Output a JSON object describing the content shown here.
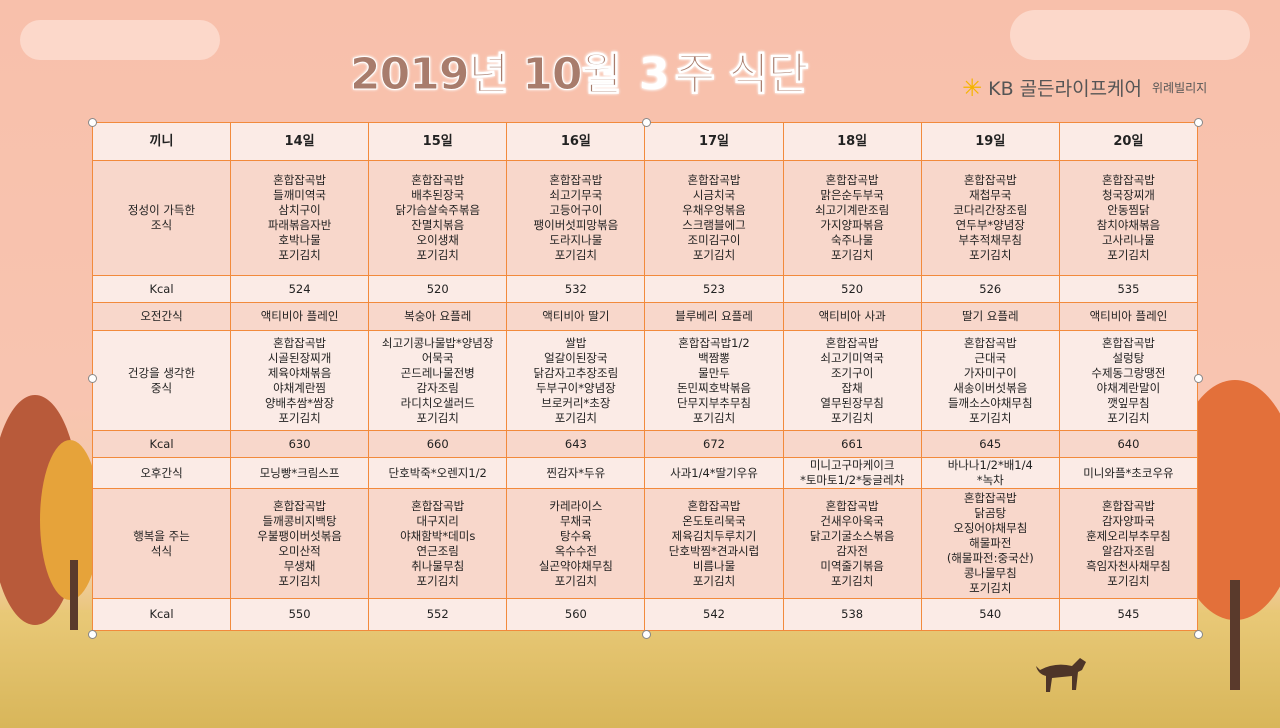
{
  "title": {
    "main": "2019년 10월",
    "week": "3",
    "suffix": "주 식단"
  },
  "logo": {
    "brand": "KB 골든라이프케어",
    "sub": "위례빌리지",
    "accent": "#f5b400"
  },
  "colors": {
    "border": "#f28a3c",
    "light_row": "#fbebe6",
    "dark_row": "#f8d7cb"
  },
  "table": {
    "header": [
      "끼니",
      "14일",
      "15일",
      "16일",
      "17일",
      "18일",
      "19일",
      "20일"
    ],
    "rows": [
      {
        "label": "정성이 가득한\n조식",
        "style": "dark",
        "height": 115,
        "cells": [
          "혼합잡곡밥\n들깨미역국\n삼치구이\n파래볶음자반\n호박나물\n포기김치",
          "혼합잡곡밥\n배추된장국\n닭가슴살숙주볶음\n잔멸치볶음\n오이생채\n포기김치",
          "혼합잡곡밥\n쇠고기무국\n고등어구이\n팽이버섯피망볶음\n도라지나물\n포기김치",
          "혼합잡곡밥\n시금치국\n우채우엉볶음\n스크램블에그\n조미김구이\n포기김치",
          "혼합잡곡밥\n맑은순두부국\n쇠고기계란조림\n가지양파볶음\n숙주나물\n포기김치",
          "혼합잡곡밥\n재첩무국\n코다리간장조림\n연두부*양념장\n부추적채무침\n포기김치",
          "혼합잡곡밥\n청국장찌개\n안동찜닭\n참치야채볶음\n고사리나물\n포기김치"
        ]
      },
      {
        "label": "Kcal",
        "style": "light",
        "height": 27,
        "cells": [
          "524",
          "520",
          "532",
          "523",
          "520",
          "526",
          "535"
        ]
      },
      {
        "label": "오전간식",
        "style": "dark",
        "height": 28,
        "cells": [
          "액티비아 플레인",
          "복숭아 요플레",
          "액티비아 딸기",
          "블루베리 요플레",
          "액티비아 사과",
          "딸기 요플레",
          "액티비아 플레인"
        ]
      },
      {
        "label": "건강을 생각한\n중식",
        "style": "light",
        "height": 100,
        "cells": [
          "혼합잡곡밥\n시골된장찌개\n제육야채볶음\n야채계란찜\n양배추쌈*쌈장\n포기김치",
          "쇠고기콩나물밥*양념장\n어묵국\n곤드레나물전병\n감자조림\n라디치오샐러드\n포기김치",
          "쌀밥\n얼갈이된장국\n닭감자고추장조림\n두부구이*양념장\n브로커리*초장\n포기김치",
          "혼합잡곡밥1/2\n백짬뽕\n물만두\n돈민찌호박볶음\n단무지부추무침\n포기김치",
          "혼합잡곡밥\n쇠고기미역국\n조기구이\n잡채\n열무된장무침\n포기김치",
          "혼합잡곡밥\n근대국\n가자미구이\n새송이버섯볶음\n들깨소스야채무침\n포기김치",
          "혼합잡곡밥\n설렁탕\n수제동그랑땡전\n야채계란말이\n깻잎무침\n포기김치"
        ]
      },
      {
        "label": "Kcal",
        "style": "dark",
        "height": 27,
        "cells": [
          "630",
          "660",
          "643",
          "672",
          "661",
          "645",
          "640"
        ]
      },
      {
        "label": "오후간식",
        "style": "light",
        "height": 29,
        "cells": [
          "모닝빵*크림스프",
          "단호박죽*오렌지1/2",
          "찐감자*두유",
          "사과1/4*딸기우유",
          "미니고구마케이크\n*토마토1/2*둥글레차",
          "바나나1/2*배1/4\n*녹차",
          "미니와플*초코우유"
        ]
      },
      {
        "label": "행복을 주는\n석식",
        "style": "dark",
        "height": 110,
        "cells": [
          "혼합잡곡밥\n들깨콩비지백탕\n우불팽이버섯볶음\n오미산적\n무생채\n포기김치",
          "혼합잡곡밥\n대구지리\n야채함박*데미s\n연근조림\n취나물무침\n포기김치",
          "카레라이스\n무채국\n탕수육\n옥수수전\n실곤약야채무침\n포기김치",
          "혼합잡곡밥\n온도토리묵국\n제육김치두루치기\n단호박찜*견과시럽\n비름나물\n포기김치",
          "혼합잡곡밥\n건새우아욱국\n닭고기굴소스볶음\n감자전\n미역줄기볶음\n포기김치",
          "혼합잡곡밥\n닭곰탕\n오징어야채무침\n해물파전\n(해물파전:중국산)\n콩나물무침\n포기김치",
          "혼합잡곡밥\n감자양파국\n훈제오리부추무침\n알감자조림\n흑임자천사채무침\n포기김치"
        ]
      },
      {
        "label": "Kcal",
        "style": "light",
        "height": 32,
        "cells": [
          "550",
          "552",
          "560",
          "542",
          "538",
          "540",
          "545"
        ]
      }
    ]
  }
}
